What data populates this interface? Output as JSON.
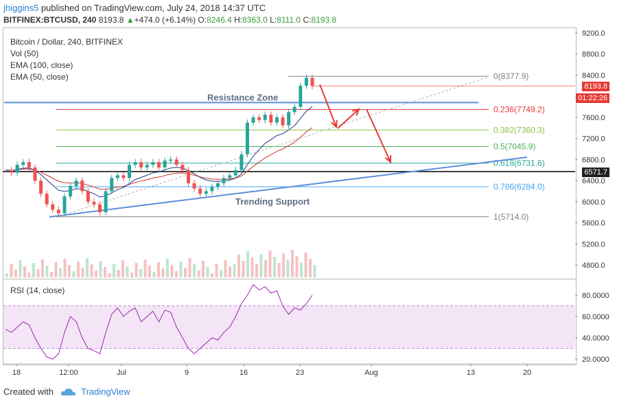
{
  "header": {
    "user": "jhiggins5",
    "published": "published on TradingView.com, July 24, 2018 14:37 UTC",
    "symbol": "BITFINEX:BTCUSD, 240",
    "last": "8193.8",
    "change": "+474.0 (+6.14%)",
    "o_label": "O:",
    "o_value": "8246.4",
    "h_label": "H:",
    "h_value": "8363.0",
    "l_label": "L:",
    "l_value": "8111.0",
    "c_label": "C:",
    "c_value": "8193.8"
  },
  "legend": {
    "title": "Bitcoin / Dollar, 240, BITFINEX",
    "vol": "Vol (50)",
    "ema100": "EMA (100, close)",
    "ema50": "EMA (50, close)"
  },
  "rsi_legend": "RSI (14, close)",
  "annotations": {
    "resistance": "Resistance Zone",
    "support": "Trending Support"
  },
  "price_tags": {
    "last": "8193.8",
    "countdown": "01:22:26",
    "level": "6571.7"
  },
  "footer": {
    "created": "Created with",
    "brand": "TradingView"
  },
  "colors": {
    "accent": "#2a7fd4",
    "fib0": "#808080",
    "fib236": "#e53935",
    "fib382": "#8bc34a",
    "fib5": "#4caf50",
    "fib618": "#26a69a",
    "fib786": "#42a5f5",
    "fib1": "#808080",
    "trend": "#5b8dd9",
    "arrow": "#e53935",
    "rsi": "#9c27b0",
    "rsiband": "#f3e5f5"
  },
  "chart_data": {
    "type": "candlestick",
    "y_axis_ticks": [
      "9200.0",
      "8800.0",
      "8400.0",
      "8000.0",
      "7600.0",
      "7200.0",
      "6800.0",
      "6400.0",
      "6000.0",
      "5600.0",
      "5200.0",
      "4800.0"
    ],
    "rsi_axis_ticks": [
      "80.0000",
      "60.0000",
      "40.0000",
      "20.0000"
    ],
    "x_axis_ticks": [
      "18",
      "12:00",
      "Jul",
      "9",
      "16",
      "23",
      "Aug",
      "13",
      "20"
    ],
    "fib_levels": [
      {
        "label": "0(8377.9)",
        "price": 8377.9
      },
      {
        "label": "0.236(7749.2)",
        "price": 7749.2
      },
      {
        "label": "0.382(7360.3)",
        "price": 7360.3
      },
      {
        "label": "0.5(7045.9)",
        "price": 7045.9
      },
      {
        "label": "0.618(6731.6)",
        "price": 6731.6
      },
      {
        "label": "0.786(6284.0)",
        "price": 6284.0
      },
      {
        "label": "1(5714.0)",
        "price": 5714.0
      }
    ],
    "resistance_price": 7880,
    "level_price": 6571.7,
    "last_price": 8193.8,
    "price_path": [
      6600,
      6550,
      6700,
      6750,
      6650,
      6400,
      6150,
      5950,
      5850,
      5780,
      6100,
      6300,
      6400,
      6200,
      6000,
      5950,
      5800,
      6200,
      6450,
      6500,
      6450,
      6700,
      6750,
      6650,
      6700,
      6750,
      6650,
      6780,
      6800,
      6700,
      6600,
      6350,
      6250,
      6150,
      6200,
      6280,
      6350,
      6450,
      6500,
      6600,
      6900,
      7500,
      7600,
      7550,
      7650,
      7500,
      7600,
      7450,
      7700,
      7800,
      8200,
      8350,
      8194
    ],
    "rsi_path": [
      48,
      45,
      50,
      55,
      52,
      40,
      30,
      22,
      20,
      25,
      45,
      60,
      55,
      40,
      30,
      28,
      25,
      45,
      62,
      68,
      60,
      65,
      68,
      55,
      60,
      65,
      55,
      66,
      64,
      50,
      40,
      30,
      25,
      30,
      35,
      40,
      38,
      45,
      50,
      60,
      72,
      80,
      90,
      85,
      88,
      82,
      84,
      70,
      62,
      68,
      66,
      72,
      80
    ]
  }
}
